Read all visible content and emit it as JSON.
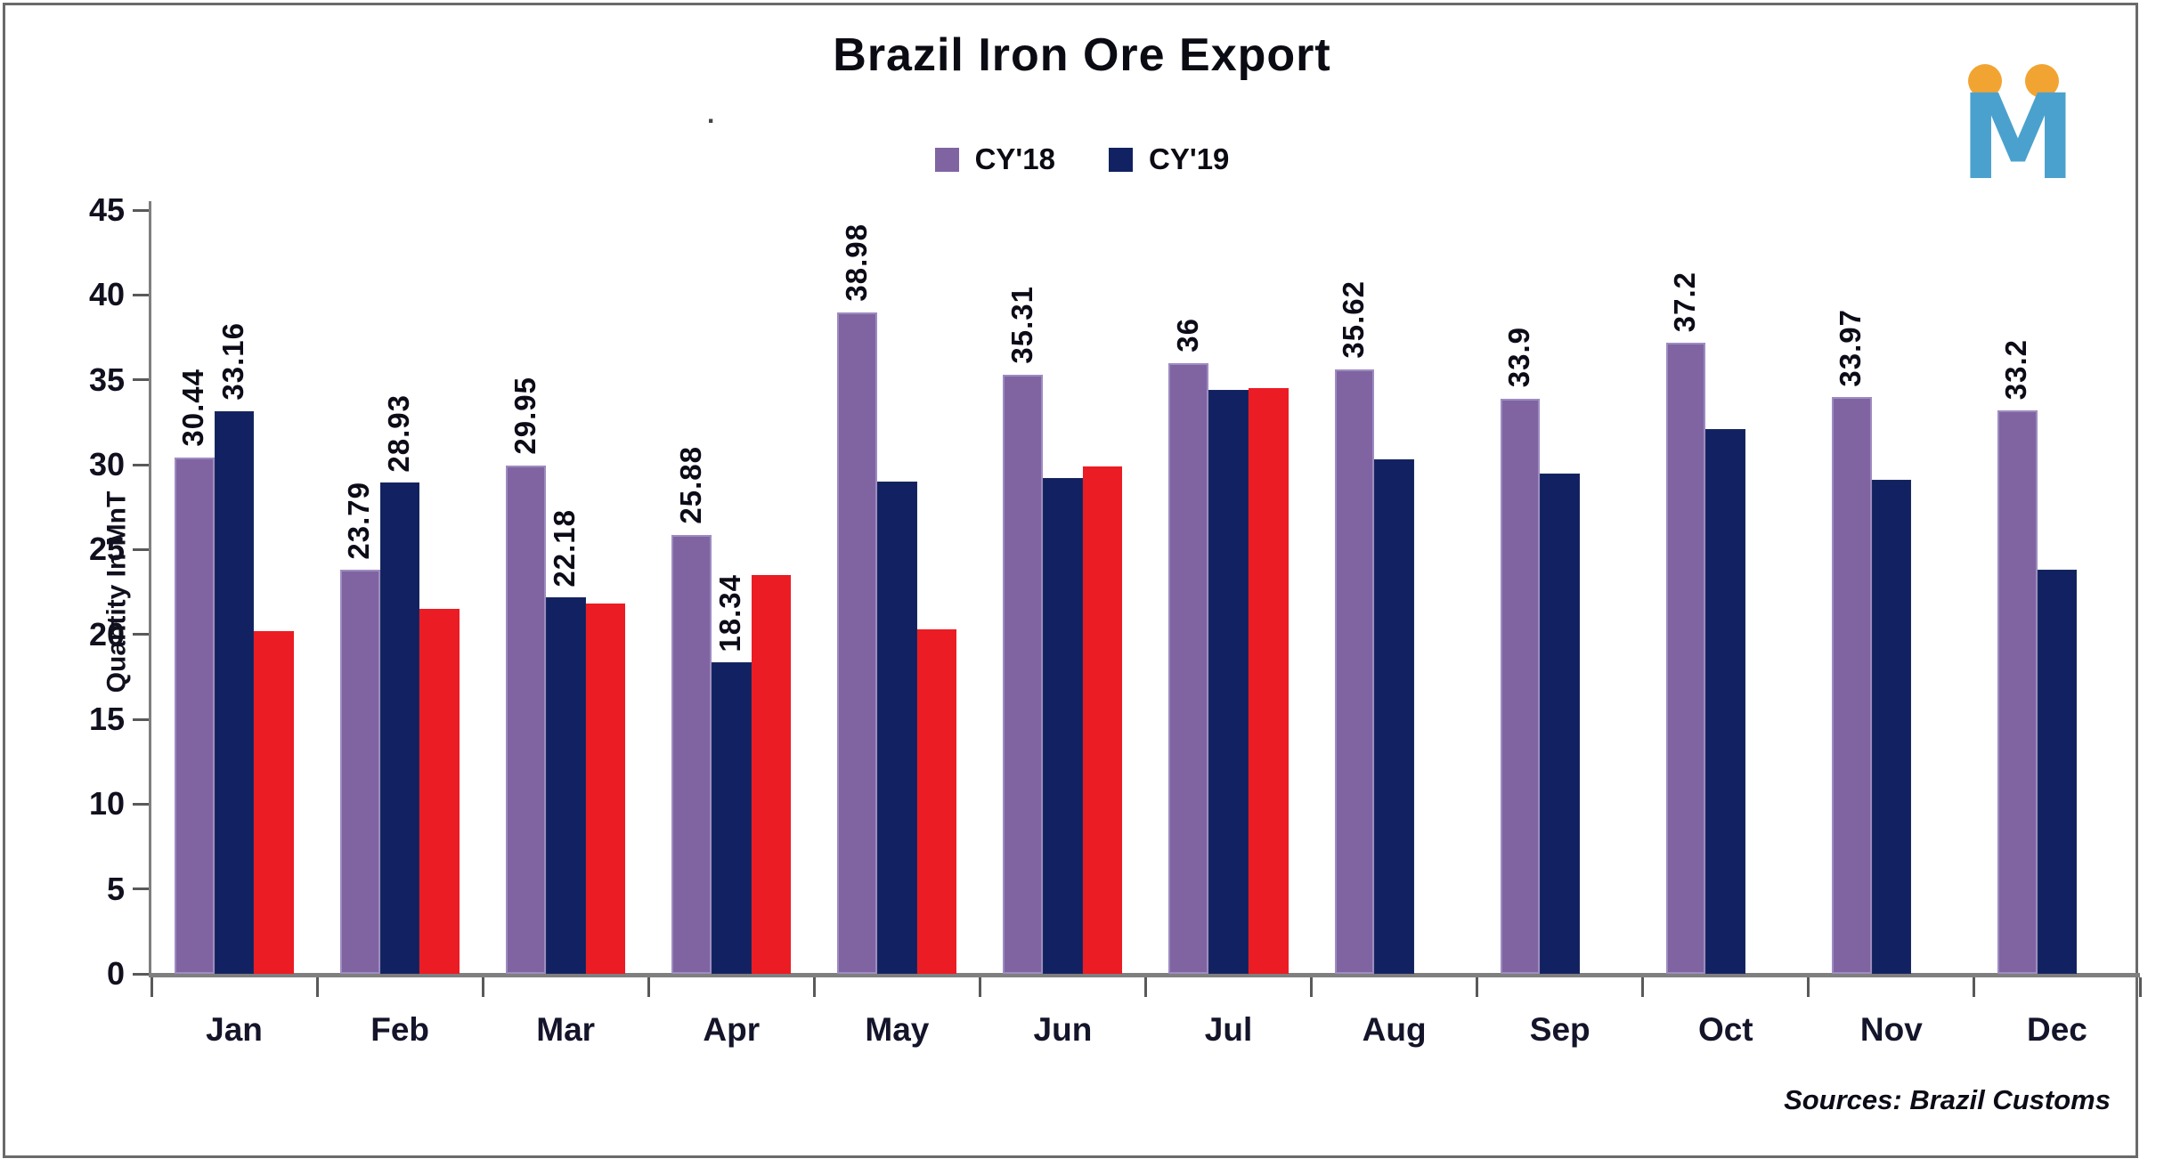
{
  "title": "Brazil Iron Ore Export",
  "stray_mark": ".",
  "legend": [
    {
      "label": "CY'18",
      "color": "#8064A2"
    },
    {
      "label": "CY'19",
      "color": "#112161"
    }
  ],
  "y_axis": {
    "title": "Quantity In MnT",
    "ticks": [
      0,
      5,
      10,
      15,
      20,
      25,
      30,
      35,
      40,
      45
    ],
    "min": 0,
    "max": 45
  },
  "source_note": "Sources: Brazil Customs",
  "logo": {
    "letter": "M",
    "letter_color": "#4ba1cd",
    "dot_color": "#f2a432"
  },
  "chart_data": {
    "type": "bar",
    "title": "Brazil Iron Ore Export",
    "xlabel": "",
    "ylabel": "Quantity In MnT",
    "ylim": [
      0,
      45
    ],
    "grid": false,
    "legend_position": "top-center",
    "categories": [
      "Jan",
      "Feb",
      "Mar",
      "Apr",
      "May",
      "Jun",
      "Jul",
      "Aug",
      "Sep",
      "Oct",
      "Nov",
      "Dec"
    ],
    "series": [
      {
        "name": "CY'18",
        "color": "#8064A2",
        "values": [
          30.44,
          23.79,
          29.95,
          25.88,
          38.98,
          35.31,
          36,
          35.62,
          33.9,
          37.2,
          33.97,
          33.2
        ],
        "data_labels": [
          "30.44",
          "23.79",
          "29.95",
          "25.88",
          "38.98",
          "35.31",
          "36",
          "35.62",
          "33.9",
          "37.2",
          "33.97",
          "33.2"
        ]
      },
      {
        "name": "CY'19",
        "color": "#112161",
        "values": [
          33.16,
          28.93,
          22.18,
          18.34,
          29.0,
          29.2,
          34.4,
          30.3,
          29.5,
          32.1,
          29.1,
          23.8
        ],
        "data_labels": [
          "33.16",
          "28.93",
          "22.18",
          "18.34",
          "",
          "",
          "",
          "",
          "",
          "",
          "",
          ""
        ]
      },
      {
        "name": "",
        "color": "#EC1C24",
        "values": [
          20.2,
          21.5,
          21.8,
          23.5,
          20.3,
          29.9,
          34.5,
          null,
          null,
          null,
          null,
          null
        ],
        "data_labels": [
          "",
          "",
          "",
          "",
          "",
          "",
          "",
          "",
          "",
          "",
          "",
          ""
        ]
      }
    ]
  }
}
